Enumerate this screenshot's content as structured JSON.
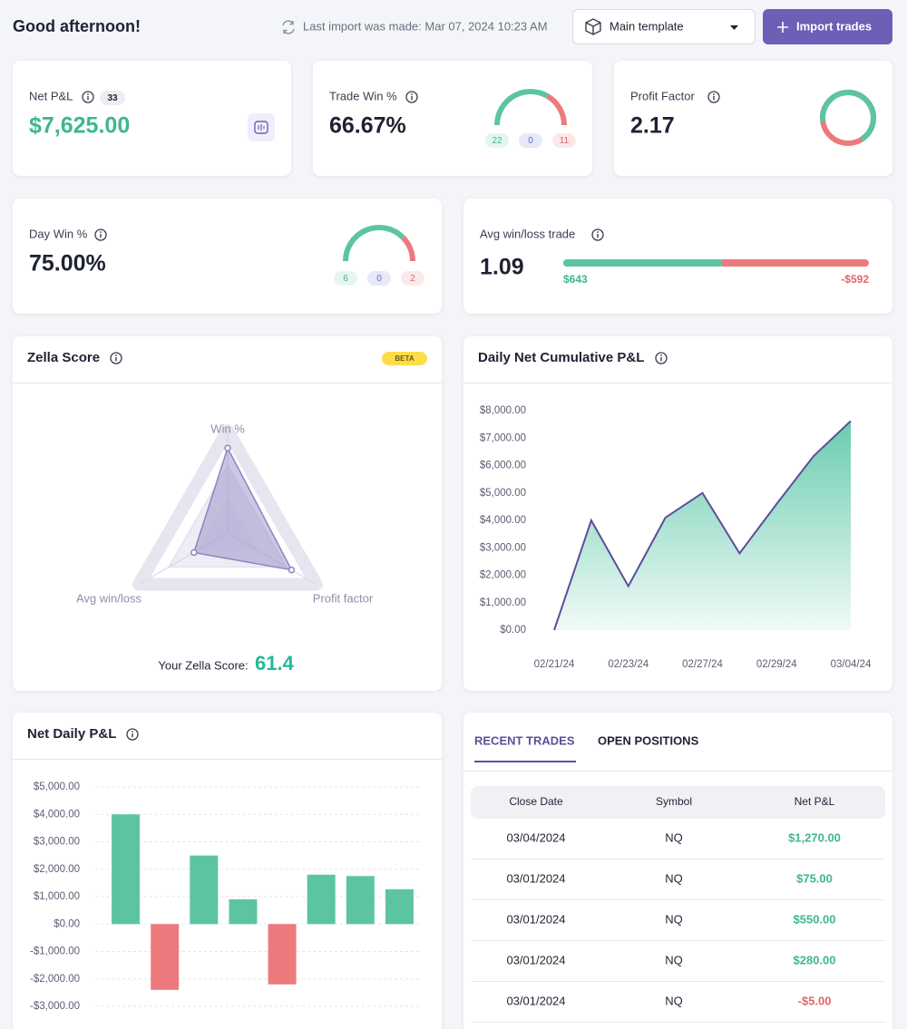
{
  "header": {
    "greeting": "Good afternoon!",
    "last_import": "Last import was made: Mar 07, 2024 10:23 AM",
    "template": "Main template",
    "import_button": "Import trades"
  },
  "colors": {
    "win": "#5cc5a0",
    "loss": "#ec7a7d",
    "even": "#5a6fbf",
    "accent": "#5b4f9a"
  },
  "net_pnl": {
    "label": "Net P&L",
    "trade_count": 33,
    "value": "$7,625.00"
  },
  "trade_win": {
    "label": "Trade Win %",
    "value": "66.67%",
    "wins": 22,
    "breakeven": 0,
    "losses": 11
  },
  "profit_factor": {
    "label": "Profit Factor",
    "value": 2.17
  },
  "day_win": {
    "label": "Day Win %",
    "value": "75.00%",
    "wins": 6,
    "breakeven": 0,
    "losses": 2
  },
  "avg_win_loss": {
    "label": "Avg win/loss trade",
    "value": 1.09,
    "avg_win": {
      "value": 643,
      "label": "$643"
    },
    "avg_loss": {
      "value": -592,
      "label": "-$592"
    }
  },
  "zella_score": {
    "title": "Zella Score",
    "badge": "BETA",
    "chart_data": {
      "type": "radar",
      "categories": [
        "Win %",
        "Profit factor",
        "Avg win/loss"
      ],
      "values": [
        83,
        72,
        38
      ],
      "ylim": [
        0,
        100
      ],
      "color": "#8e84c0"
    },
    "score_label": "Your Zella Score:",
    "score": 61.4
  },
  "cumulative": {
    "title": "Daily Net Cumulative P&L",
    "chart_data": {
      "type": "area",
      "x": [
        "02/21/24",
        null,
        "02/23/24",
        null,
        "02/27/24",
        null,
        "02/29/24",
        null,
        "03/04/24"
      ],
      "values": [
        0,
        4000,
        1600,
        4100,
        5000,
        2800,
        4600,
        6350,
        7625
      ],
      "color": "#5b4f9a",
      "fill": "#4fc3a1",
      "ylim": [
        0,
        8000
      ],
      "yticks": [
        {
          "value": 0,
          "label": "$0.00"
        },
        {
          "value": 1000,
          "label": "$1,000.00"
        },
        {
          "value": 2000,
          "label": "$2,000.00"
        },
        {
          "value": 3000,
          "label": "$3,000.00"
        },
        {
          "value": 4000,
          "label": "$4,000.00"
        },
        {
          "value": 5000,
          "label": "$5,000.00"
        },
        {
          "value": 6000,
          "label": "$6,000.00"
        },
        {
          "value": 7000,
          "label": "$7,000.00"
        },
        {
          "value": 8000,
          "label": "$8,000.00"
        }
      ]
    }
  },
  "net_daily": {
    "title": "Net Daily P&L",
    "chart_data": {
      "type": "bar",
      "values": [
        4000,
        -2400,
        2500,
        900,
        -2200,
        1800,
        1750,
        1270
      ],
      "ylim": [
        -3000,
        5000
      ],
      "grid": true,
      "yticks": [
        {
          "value": -3000,
          "label": "-$3,000.00"
        },
        {
          "value": -2000,
          "label": "-$2,000.00"
        },
        {
          "value": -1000,
          "label": "-$1,000.00"
        },
        {
          "value": 0,
          "label": "$0.00"
        },
        {
          "value": 1000,
          "label": "$1,000.00"
        },
        {
          "value": 2000,
          "label": "$2,000.00"
        },
        {
          "value": 3000,
          "label": "$3,000.00"
        },
        {
          "value": 4000,
          "label": "$4,000.00"
        },
        {
          "value": 5000,
          "label": "$5,000.00"
        }
      ]
    }
  },
  "trades": {
    "tabs": [
      "RECENT TRADES",
      "OPEN POSITIONS"
    ],
    "columns": [
      "Close Date",
      "Symbol",
      "Net P&L"
    ],
    "rows": [
      [
        "03/04/2024",
        "NQ",
        "$1,270.00"
      ],
      [
        "03/01/2024",
        "NQ",
        "$75.00"
      ],
      [
        "03/01/2024",
        "NQ",
        "$550.00"
      ],
      [
        "03/01/2024",
        "NQ",
        "$280.00"
      ],
      [
        "03/01/2024",
        "NQ",
        "-$5.00"
      ]
    ]
  }
}
